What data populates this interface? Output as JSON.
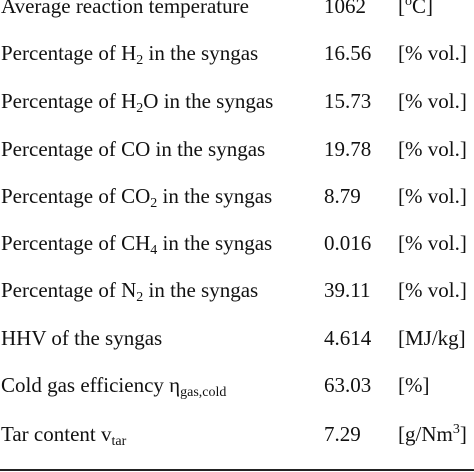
{
  "rows": [
    {
      "param": [
        {
          "t": "Average reaction temperature"
        }
      ],
      "value": "1062",
      "unit": [
        {
          "t": "["
        },
        {
          "t": "o",
          "s": "sup"
        },
        {
          "t": "C]"
        }
      ]
    },
    {
      "param": [
        {
          "t": "Percentage of H"
        },
        {
          "t": "2",
          "s": "sub"
        },
        {
          "t": " in the syngas"
        }
      ],
      "value": "16.56",
      "unit": [
        {
          "t": "[% vol.]"
        }
      ]
    },
    {
      "param": [
        {
          "t": "Percentage of H"
        },
        {
          "t": "2",
          "s": "sub"
        },
        {
          "t": "O in the syngas"
        }
      ],
      "value": "15.73",
      "unit": [
        {
          "t": "[% vol.]"
        }
      ]
    },
    {
      "param": [
        {
          "t": "Percentage of CO in the syngas"
        }
      ],
      "value": "19.78",
      "unit": [
        {
          "t": "[% vol.]"
        }
      ]
    },
    {
      "param": [
        {
          "t": "Percentage of CO"
        },
        {
          "t": "2",
          "s": "sub"
        },
        {
          "t": " in the syngas"
        }
      ],
      "value": "8.79",
      "unit": [
        {
          "t": "[% vol.]"
        }
      ]
    },
    {
      "param": [
        {
          "t": "Percentage of CH"
        },
        {
          "t": "4",
          "s": "sub"
        },
        {
          "t": " in the syngas"
        }
      ],
      "value": "0.016",
      "unit": [
        {
          "t": "[% vol.]"
        }
      ]
    },
    {
      "param": [
        {
          "t": "Percentage of N"
        },
        {
          "t": "2",
          "s": "sub"
        },
        {
          "t": " in the syngas"
        }
      ],
      "value": "39.11",
      "unit": [
        {
          "t": "[% vol.]"
        }
      ]
    },
    {
      "param": [
        {
          "t": "HHV of the syngas"
        }
      ],
      "value": "4.614",
      "unit": [
        {
          "t": "[MJ/kg]"
        }
      ]
    },
    {
      "param": [
        {
          "t": "Cold gas efficiency η"
        },
        {
          "t": "gas,cold",
          "s": "sub"
        }
      ],
      "value": "63.03",
      "unit": [
        {
          "t": "[%]"
        }
      ]
    },
    {
      "param": [
        {
          "t": "Tar content v"
        },
        {
          "t": "tar",
          "s": "sub"
        }
      ],
      "value": "7.29",
      "unit": [
        {
          "t": "[g/Nm"
        },
        {
          "t": "3",
          "s": "sup"
        },
        {
          "t": "]"
        }
      ]
    }
  ]
}
